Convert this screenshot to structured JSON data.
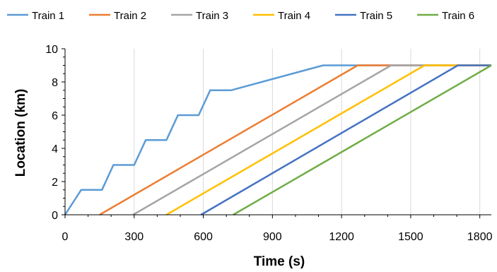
{
  "chart_data": {
    "type": "line",
    "title": "",
    "xlabel": "Time (s)",
    "ylabel": "Location (km)",
    "xlim": [
      0,
      1850
    ],
    "ylim": [
      0,
      10
    ],
    "xticks": [
      0,
      300,
      600,
      900,
      1200,
      1500,
      1800
    ],
    "yticks": [
      0,
      2,
      4,
      6,
      8,
      10
    ],
    "grid": "vertical",
    "legend": "top",
    "series": [
      {
        "name": "Train 1",
        "color": "#5B9BD5",
        "x": [
          0,
          70,
          90,
          140,
          160,
          210,
          230,
          280,
          300,
          350,
          370,
          420,
          440,
          490,
          510,
          560,
          580,
          630,
          650,
          700,
          720,
          1120,
          1850
        ],
        "y": [
          0,
          1.5,
          1.5,
          1.5,
          1.5,
          3,
          3,
          3,
          3,
          4.5,
          4.5,
          4.5,
          4.5,
          6,
          6,
          6,
          6,
          7.5,
          7.5,
          7.5,
          7.5,
          9,
          9
        ]
      },
      {
        "name": "Train 2",
        "color": "#ED7D31",
        "x": [
          150,
          1270,
          1850
        ],
        "y": [
          0,
          9,
          9
        ]
      },
      {
        "name": "Train 3",
        "color": "#A5A5A5",
        "x": [
          295,
          1415,
          1850
        ],
        "y": [
          0,
          9,
          9
        ]
      },
      {
        "name": "Train 4",
        "color": "#FFC000",
        "x": [
          440,
          1560,
          1850
        ],
        "y": [
          0,
          9,
          9
        ]
      },
      {
        "name": "Train 5",
        "color": "#4472C4",
        "x": [
          590,
          1705,
          1850
        ],
        "y": [
          0,
          9,
          9
        ]
      },
      {
        "name": "Train 6",
        "color": "#70AD47",
        "x": [
          730,
          1850
        ],
        "y": [
          0,
          9
        ]
      }
    ]
  }
}
